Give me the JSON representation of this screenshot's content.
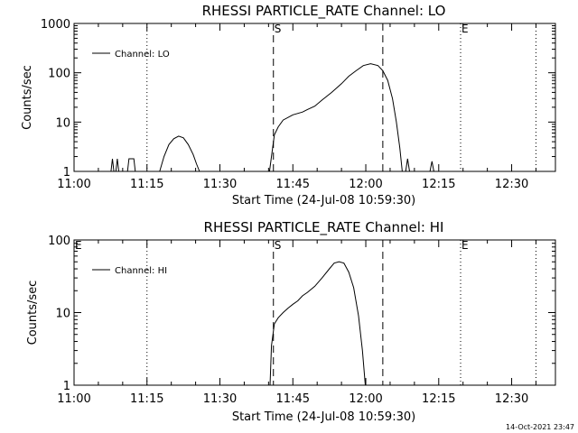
{
  "chart_data": [
    {
      "type": "line",
      "title": "RHESSI PARTICLE_RATE Channel: LO",
      "xlabel": "Start Time (24-Jul-08 10:59:30)",
      "ylabel": "Counts/sec",
      "x_units": "minutes after 11:00",
      "xlim": [
        0,
        99
      ],
      "ylim": [
        1,
        1000
      ],
      "yscale": "log",
      "x_ticks": [
        0,
        15,
        30,
        45,
        60,
        75,
        90
      ],
      "x_tick_labels": [
        "11:00",
        "11:15",
        "11:30",
        "11:45",
        "12:00",
        "12:15",
        "12:30"
      ],
      "y_ticks": [
        1,
        10,
        100,
        1000
      ],
      "y_tick_labels": [
        "1",
        "10",
        "100",
        "1000"
      ],
      "legend": {
        "placement": "top-left",
        "entries": [
          "Channel: LO"
        ]
      },
      "vertical_markers": [
        {
          "x": 0,
          "style": "dotted",
          "label": ""
        },
        {
          "x": 15,
          "style": "dotted",
          "label": ""
        },
        {
          "x": 41,
          "style": "dashed",
          "label": "S"
        },
        {
          "x": 63.5,
          "style": "dashed",
          "label": ""
        },
        {
          "x": 79.5,
          "style": "dotted",
          "label": "E"
        },
        {
          "x": 95,
          "style": "dotted",
          "label": ""
        }
      ],
      "series": [
        {
          "name": "Channel: LO",
          "segments": [
            [
              [
                7.6,
                1
              ],
              [
                7.9,
                1.8
              ],
              [
                8.2,
                1
              ]
            ],
            [
              [
                8.6,
                1
              ],
              [
                8.9,
                1.8
              ],
              [
                9.2,
                1
              ]
            ],
            [
              [
                11,
                1
              ],
              [
                11.3,
                1.8
              ],
              [
                12.3,
                1.8
              ],
              [
                12.6,
                1
              ]
            ],
            [
              [
                17.6,
                1
              ],
              [
                18.5,
                2
              ],
              [
                19.5,
                3.5
              ],
              [
                20.5,
                4.6
              ],
              [
                21.5,
                5.2
              ],
              [
                22.5,
                4.8
              ],
              [
                23.5,
                3.5
              ],
              [
                24.5,
                2.2
              ],
              [
                25.2,
                1.4
              ],
              [
                25.8,
                1
              ]
            ],
            [
              [
                40.2,
                1
              ],
              [
                40.6,
                2
              ],
              [
                41.2,
                5.5
              ],
              [
                42,
                8
              ],
              [
                43,
                11
              ],
              [
                45,
                14
              ],
              [
                47,
                16
              ],
              [
                48,
                18
              ],
              [
                49.5,
                21
              ],
              [
                51,
                28
              ],
              [
                53,
                40
              ],
              [
                55,
                60
              ],
              [
                56.5,
                85
              ],
              [
                58,
                110
              ],
              [
                59.5,
                140
              ],
              [
                61,
                152
              ],
              [
                62.5,
                140
              ],
              [
                63.5,
                110
              ],
              [
                64.5,
                70
              ],
              [
                65.5,
                30
              ],
              [
                66.3,
                10
              ],
              [
                67,
                3
              ],
              [
                67.5,
                1
              ]
            ],
            [
              [
                68.2,
                1
              ],
              [
                68.6,
                1.8
              ],
              [
                69,
                1
              ]
            ],
            [
              [
                73.2,
                1
              ],
              [
                73.6,
                1.6
              ],
              [
                74,
                1
              ]
            ]
          ]
        }
      ]
    },
    {
      "type": "line",
      "title": "RHESSI PARTICLE_RATE Channel: HI",
      "xlabel": "Start Time (24-Jul-08 10:59:30)",
      "ylabel": "Counts/sec",
      "x_units": "minutes after 11:00",
      "xlim": [
        0,
        99
      ],
      "ylim": [
        1,
        100
      ],
      "yscale": "log",
      "x_ticks": [
        0,
        15,
        30,
        45,
        60,
        75,
        90
      ],
      "x_tick_labels": [
        "11:00",
        "11:15",
        "11:30",
        "11:45",
        "12:00",
        "12:15",
        "12:30"
      ],
      "y_ticks": [
        1,
        10,
        100
      ],
      "y_tick_labels": [
        "1",
        "10",
        "100"
      ],
      "legend": {
        "placement": "top-left",
        "entries": [
          "Channel: HI"
        ]
      },
      "vertical_markers": [
        {
          "x": 0,
          "style": "dotted",
          "label": "E"
        },
        {
          "x": 15,
          "style": "dotted",
          "label": ""
        },
        {
          "x": 41,
          "style": "dashed",
          "label": "S"
        },
        {
          "x": 63.5,
          "style": "dashed",
          "label": ""
        },
        {
          "x": 79.5,
          "style": "dotted",
          "label": "E"
        },
        {
          "x": 95,
          "style": "dotted",
          "label": ""
        }
      ],
      "series": [
        {
          "name": "Channel: HI",
          "segments": [
            [
              [
                40.3,
                1
              ],
              [
                40.6,
                3.5
              ],
              [
                41.2,
                7
              ],
              [
                42,
                8.5
              ],
              [
                43,
                10
              ],
              [
                44,
                11.5
              ],
              [
                45,
                13
              ],
              [
                46,
                14.5
              ],
              [
                47,
                17
              ],
              [
                48,
                19
              ],
              [
                49.5,
                23
              ],
              [
                51,
                30
              ],
              [
                52.5,
                40
              ],
              [
                53.5,
                48
              ],
              [
                54.5,
                50
              ],
              [
                55.5,
                48
              ],
              [
                56.5,
                36
              ],
              [
                57.5,
                22
              ],
              [
                58.5,
                9
              ],
              [
                59.3,
                3
              ],
              [
                59.9,
                1
              ]
            ]
          ]
        }
      ]
    }
  ],
  "footer": {
    "timestamp": "14-Oct-2021 23:47"
  }
}
